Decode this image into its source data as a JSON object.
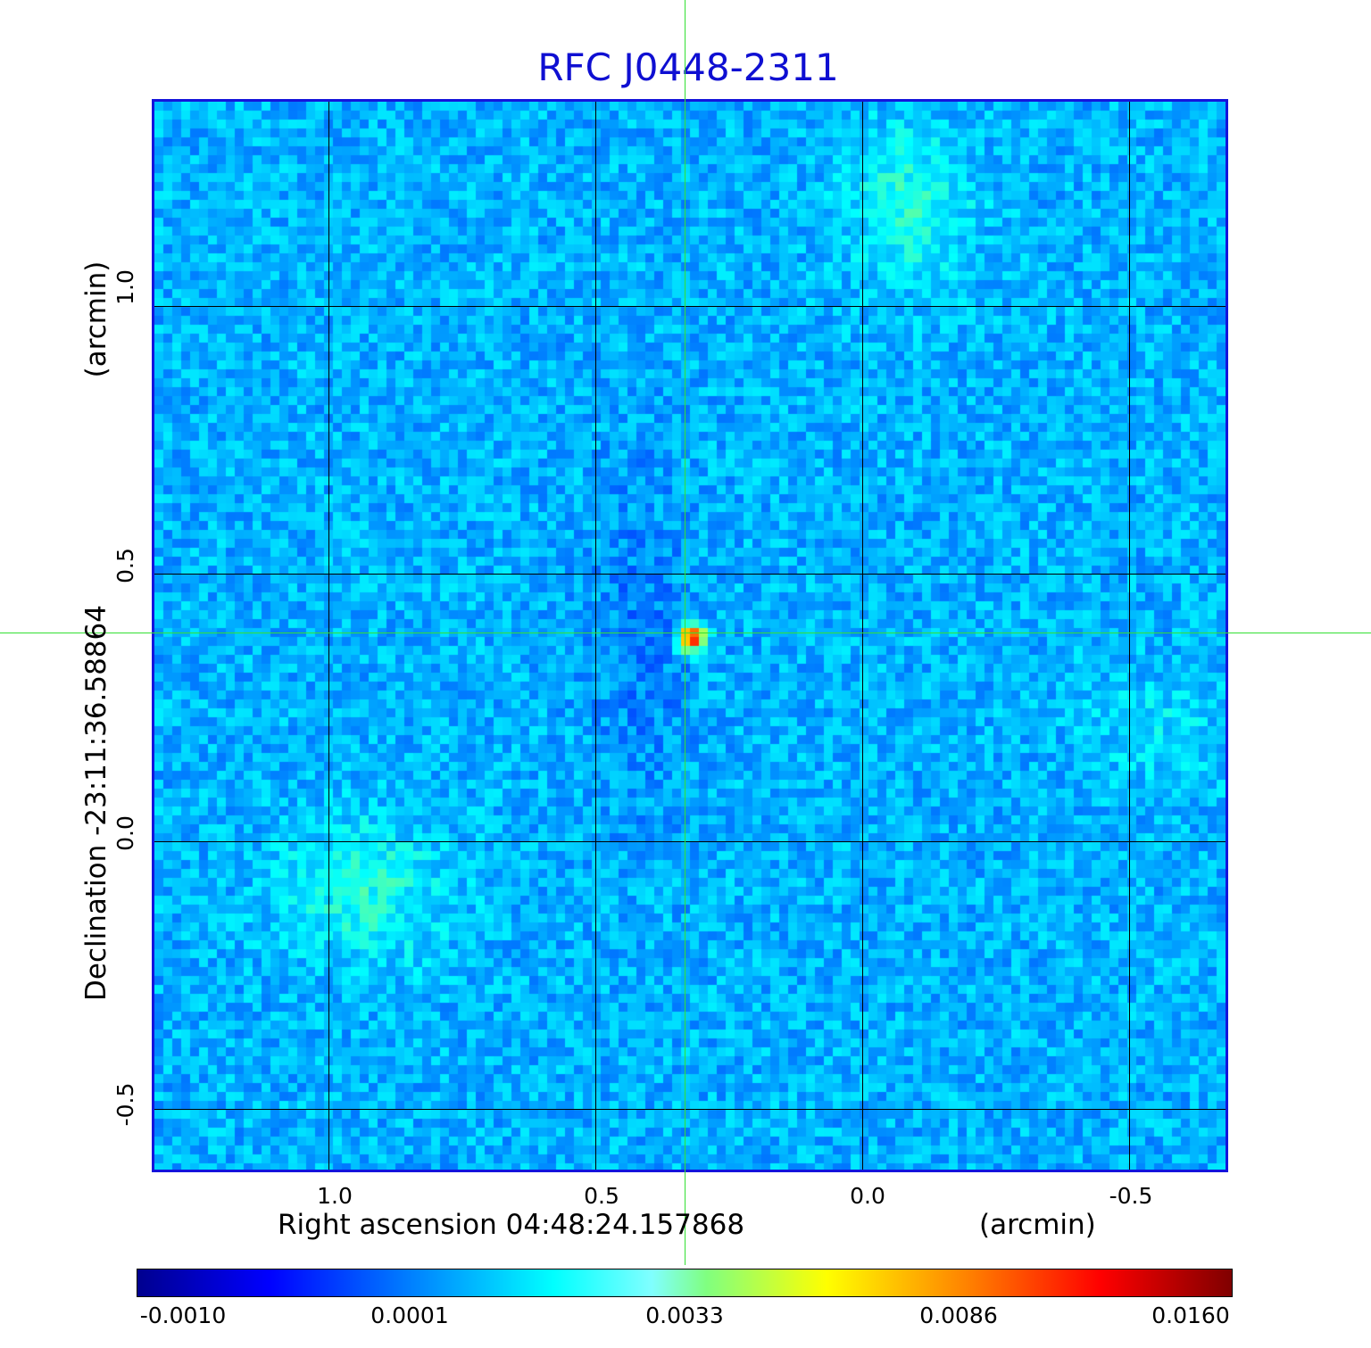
{
  "title": "RFC J0448-2311",
  "x_axis": {
    "label": "Right ascension  04:48:24.157868",
    "unit": "(arcmin)",
    "ticks": [
      "1.0",
      "0.5",
      "0.0",
      "-0.5"
    ]
  },
  "y_axis": {
    "label": "Declination  -23:11:36.58864",
    "unit": "(arcmin)",
    "ticks": [
      "1.0",
      "0.5",
      "0.0",
      "-0.5"
    ]
  },
  "colorbar": {
    "ticks": [
      "-0.0010",
      "0.0001",
      "0.0033",
      "0.0086",
      "0.0160"
    ],
    "colormap": "jet"
  },
  "colors": {
    "title": "#0f0fd2",
    "background_map": "#1f8df0",
    "crosshair": "#33e033",
    "frame": "#1414dc"
  }
}
